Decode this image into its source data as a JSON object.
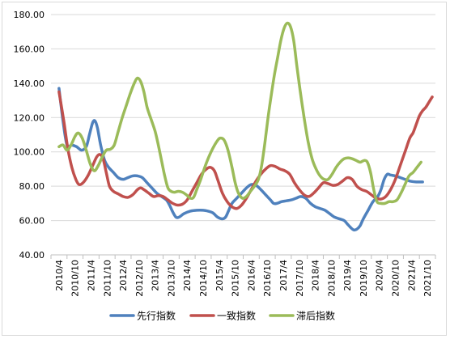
{
  "chart_data": {
    "type": "line",
    "title": "",
    "xlabel": "",
    "ylabel": "",
    "ylim": [
      40,
      180
    ],
    "yticks": [
      "40.00",
      "60.00",
      "80.00",
      "100.00",
      "120.00",
      "140.00",
      "160.00",
      "180.00"
    ],
    "yticks_values": [
      40,
      60,
      80,
      100,
      120,
      140,
      160,
      180
    ],
    "xticks": [
      "2010/4",
      "2010/10",
      "2011/4",
      "2011/10",
      "2012/4",
      "2012/10",
      "2013/4",
      "2013/10",
      "2014/4",
      "2014/10",
      "2015/4",
      "2015/10",
      "2016/4",
      "2016/10",
      "2017/4",
      "2017/10",
      "2018/4",
      "2018/10",
      "2019/4",
      "2019/10",
      "2020/4",
      "2020/10",
      "2021/4",
      "2021/10"
    ],
    "grid": true,
    "legend_position": "bottom",
    "series": [
      {
        "name": "先行指数",
        "color": "#4f81bd",
        "points": [
          [
            0,
            137
          ],
          [
            0.25,
            118
          ],
          [
            0.5,
            104
          ],
          [
            0.8,
            104
          ],
          [
            1.1,
            103
          ],
          [
            1.4,
            101
          ],
          [
            1.7,
            103
          ],
          [
            1.9,
            110
          ],
          [
            2.1,
            117
          ],
          [
            2.25,
            118
          ],
          [
            2.4,
            114
          ],
          [
            2.6,
            104
          ],
          [
            2.85,
            95
          ],
          [
            3.1,
            91
          ],
          [
            3.4,
            88
          ],
          [
            3.7,
            85
          ],
          [
            4.0,
            84
          ],
          [
            4.3,
            85
          ],
          [
            4.6,
            86
          ],
          [
            4.9,
            86
          ],
          [
            5.2,
            85
          ],
          [
            5.5,
            82
          ],
          [
            5.8,
            79
          ],
          [
            6.1,
            76
          ],
          [
            6.4,
            74
          ],
          [
            6.7,
            72
          ],
          [
            6.9,
            69
          ],
          [
            7.1,
            65
          ],
          [
            7.3,
            62
          ],
          [
            7.5,
            62
          ],
          [
            7.8,
            64
          ],
          [
            8.2,
            65.5
          ],
          [
            8.6,
            66
          ],
          [
            9.0,
            66
          ],
          [
            9.3,
            65.5
          ],
          [
            9.6,
            64.5
          ],
          [
            9.9,
            62
          ],
          [
            10.2,
            61
          ],
          [
            10.4,
            62
          ],
          [
            10.6,
            66
          ],
          [
            10.8,
            70
          ],
          [
            11.1,
            73
          ],
          [
            11.4,
            76
          ],
          [
            11.7,
            79
          ],
          [
            12.0,
            81
          ],
          [
            12.3,
            80.5
          ],
          [
            12.6,
            78
          ],
          [
            12.9,
            75
          ],
          [
            13.2,
            72
          ],
          [
            13.4,
            70
          ],
          [
            13.6,
            70
          ],
          [
            13.9,
            71
          ],
          [
            14.2,
            71.5
          ],
          [
            14.5,
            72
          ],
          [
            14.8,
            73
          ],
          [
            15.1,
            74
          ],
          [
            15.4,
            73
          ],
          [
            15.7,
            70
          ],
          [
            16.0,
            68
          ],
          [
            16.3,
            67
          ],
          [
            16.6,
            66
          ],
          [
            16.9,
            64
          ],
          [
            17.2,
            62
          ],
          [
            17.5,
            61
          ],
          [
            17.8,
            60
          ],
          [
            18.0,
            58
          ],
          [
            18.2,
            56
          ],
          [
            18.4,
            54.5
          ],
          [
            18.6,
            55
          ],
          [
            18.8,
            57
          ],
          [
            19.0,
            61
          ],
          [
            19.3,
            66
          ],
          [
            19.6,
            71
          ],
          [
            19.9,
            74
          ],
          [
            20.1,
            78
          ],
          [
            20.3,
            84
          ],
          [
            20.5,
            87
          ],
          [
            20.7,
            86.5
          ],
          [
            21.0,
            86
          ],
          [
            21.3,
            85
          ],
          [
            21.6,
            84
          ],
          [
            21.9,
            83
          ],
          [
            22.3,
            82.5
          ],
          [
            22.7,
            82.5
          ]
        ]
      },
      {
        "name": "一致指数",
        "color": "#c0504d",
        "points": [
          [
            0,
            135
          ],
          [
            0.3,
            118
          ],
          [
            0.55,
            102
          ],
          [
            0.8,
            91
          ],
          [
            1.05,
            84
          ],
          [
            1.25,
            81
          ],
          [
            1.5,
            82
          ],
          [
            1.8,
            86
          ],
          [
            2.1,
            92
          ],
          [
            2.35,
            97
          ],
          [
            2.55,
            98.5
          ],
          [
            2.75,
            96
          ],
          [
            2.95,
            88
          ],
          [
            3.15,
            80
          ],
          [
            3.4,
            77
          ],
          [
            3.7,
            75.5
          ],
          [
            4.0,
            74
          ],
          [
            4.3,
            73.5
          ],
          [
            4.6,
            75
          ],
          [
            4.9,
            78
          ],
          [
            5.1,
            79
          ],
          [
            5.3,
            78
          ],
          [
            5.6,
            76
          ],
          [
            5.9,
            74
          ],
          [
            6.2,
            74.5
          ],
          [
            6.5,
            74
          ],
          [
            6.8,
            72
          ],
          [
            7.1,
            70
          ],
          [
            7.4,
            69
          ],
          [
            7.7,
            69.5
          ],
          [
            8.0,
            72
          ],
          [
            8.3,
            77
          ],
          [
            8.6,
            82
          ],
          [
            8.9,
            87
          ],
          [
            9.2,
            90
          ],
          [
            9.45,
            91
          ],
          [
            9.7,
            89
          ],
          [
            9.9,
            84
          ],
          [
            10.2,
            76
          ],
          [
            10.5,
            71
          ],
          [
            10.8,
            68
          ],
          [
            11.1,
            67
          ],
          [
            11.4,
            69
          ],
          [
            11.7,
            73
          ],
          [
            12.0,
            78
          ],
          [
            12.3,
            83
          ],
          [
            12.6,
            87
          ],
          [
            12.9,
            90
          ],
          [
            13.2,
            92
          ],
          [
            13.5,
            91.5
          ],
          [
            13.8,
            90
          ],
          [
            14.1,
            89
          ],
          [
            14.4,
            87
          ],
          [
            14.7,
            82
          ],
          [
            15.0,
            78
          ],
          [
            15.3,
            75
          ],
          [
            15.6,
            74
          ],
          [
            15.9,
            76
          ],
          [
            16.2,
            79
          ],
          [
            16.5,
            82
          ],
          [
            16.8,
            81.5
          ],
          [
            17.1,
            80.5
          ],
          [
            17.4,
            81
          ],
          [
            17.7,
            83
          ],
          [
            18.0,
            85
          ],
          [
            18.3,
            84
          ],
          [
            18.6,
            80
          ],
          [
            18.9,
            78
          ],
          [
            19.2,
            77
          ],
          [
            19.5,
            75
          ],
          [
            19.8,
            73
          ],
          [
            20.1,
            72.5
          ],
          [
            20.4,
            74
          ],
          [
            20.7,
            78
          ],
          [
            21.0,
            84
          ],
          [
            21.3,
            92
          ],
          [
            21.6,
            100
          ],
          [
            21.9,
            108
          ],
          [
            22.1,
            111
          ],
          [
            22.3,
            116
          ],
          [
            22.5,
            121
          ],
          [
            22.7,
            124
          ],
          [
            22.9,
            126
          ],
          [
            23.1,
            129
          ],
          [
            23.3,
            132
          ]
        ]
      },
      {
        "name": "滞后指数",
        "color": "#9bbb59",
        "points": [
          [
            0,
            103
          ],
          [
            0.25,
            104
          ],
          [
            0.5,
            101
          ],
          [
            0.75,
            104
          ],
          [
            1.0,
            109
          ],
          [
            1.2,
            111
          ],
          [
            1.45,
            108
          ],
          [
            1.7,
            101
          ],
          [
            1.95,
            93
          ],
          [
            2.2,
            89
          ],
          [
            2.45,
            92
          ],
          [
            2.7,
            97
          ],
          [
            2.95,
            101
          ],
          [
            3.2,
            101.5
          ],
          [
            3.45,
            104
          ],
          [
            3.7,
            112
          ],
          [
            3.95,
            120
          ],
          [
            4.2,
            127
          ],
          [
            4.45,
            134
          ],
          [
            4.7,
            140
          ],
          [
            4.9,
            143
          ],
          [
            5.1,
            141
          ],
          [
            5.3,
            135
          ],
          [
            5.5,
            126
          ],
          [
            5.75,
            119
          ],
          [
            6.0,
            112
          ],
          [
            6.2,
            104
          ],
          [
            6.4,
            95
          ],
          [
            6.6,
            86
          ],
          [
            6.8,
            79
          ],
          [
            7.0,
            77
          ],
          [
            7.2,
            76.5
          ],
          [
            7.45,
            77
          ],
          [
            7.7,
            76.5
          ],
          [
            7.95,
            75
          ],
          [
            8.2,
            73
          ],
          [
            8.4,
            73.5
          ],
          [
            8.6,
            78
          ],
          [
            8.85,
            84
          ],
          [
            9.1,
            91
          ],
          [
            9.35,
            97
          ],
          [
            9.6,
            102
          ],
          [
            9.85,
            106
          ],
          [
            10.05,
            108
          ],
          [
            10.3,
            107
          ],
          [
            10.55,
            101
          ],
          [
            10.8,
            91
          ],
          [
            11.0,
            82
          ],
          [
            11.2,
            76
          ],
          [
            11.45,
            73
          ],
          [
            11.7,
            74
          ],
          [
            11.95,
            77
          ],
          [
            12.2,
            80
          ],
          [
            12.45,
            84
          ],
          [
            12.65,
            92
          ],
          [
            12.85,
            105
          ],
          [
            13.05,
            120
          ],
          [
            13.25,
            133
          ],
          [
            13.45,
            145
          ],
          [
            13.65,
            155
          ],
          [
            13.85,
            165
          ],
          [
            14.05,
            172
          ],
          [
            14.25,
            175
          ],
          [
            14.45,
            173
          ],
          [
            14.65,
            165
          ],
          [
            14.85,
            150
          ],
          [
            15.05,
            136
          ],
          [
            15.3,
            120
          ],
          [
            15.55,
            106
          ],
          [
            15.8,
            96
          ],
          [
            16.05,
            90
          ],
          [
            16.3,
            86
          ],
          [
            16.55,
            84
          ],
          [
            16.8,
            84
          ],
          [
            17.05,
            87
          ],
          [
            17.3,
            91
          ],
          [
            17.55,
            94
          ],
          [
            17.8,
            96
          ],
          [
            18.05,
            96.5
          ],
          [
            18.3,
            96
          ],
          [
            18.55,
            95
          ],
          [
            18.8,
            94
          ],
          [
            19.05,
            95
          ],
          [
            19.25,
            94
          ],
          [
            19.45,
            88
          ],
          [
            19.65,
            78
          ],
          [
            19.85,
            71
          ],
          [
            20.1,
            70
          ],
          [
            20.35,
            70
          ],
          [
            20.6,
            71
          ],
          [
            20.85,
            71
          ],
          [
            21.1,
            72
          ],
          [
            21.35,
            76
          ],
          [
            21.6,
            81
          ],
          [
            21.85,
            86
          ],
          [
            22.1,
            88
          ],
          [
            22.35,
            91
          ],
          [
            22.6,
            94
          ]
        ]
      }
    ]
  }
}
